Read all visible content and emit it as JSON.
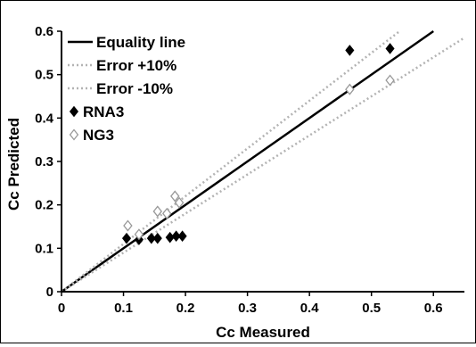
{
  "chart_data": {
    "type": "scatter",
    "xlabel": "Cc Measured",
    "ylabel": "Cc Predicted",
    "xlim": [
      0,
      0.65
    ],
    "ylim": [
      0,
      0.6
    ],
    "x_ticks": [
      0,
      0.1,
      0.2,
      0.3,
      0.4,
      0.5,
      0.6
    ],
    "y_ticks": [
      0,
      0.1,
      0.2,
      0.3,
      0.4,
      0.5,
      0.6
    ],
    "x_tick_labels": [
      "0",
      "0.1",
      "0.2",
      "0.3",
      "0.4",
      "0.5",
      "0.6"
    ],
    "y_tick_labels": [
      "0",
      "0.1",
      "0.2",
      "0.3",
      "0.4",
      "0.5",
      "0.6"
    ],
    "grid": false,
    "legend_position": "top-left",
    "lines": [
      {
        "name": "Equality line",
        "slope": 1.0,
        "color": "#000000",
        "dash": "solid"
      },
      {
        "name": "Error +10%",
        "slope": 1.1,
        "color": "#b3b3b3",
        "dash": "dotted"
      },
      {
        "name": "Error  -10%",
        "slope": 0.9,
        "color": "#b3b3b3",
        "dash": "dotted"
      }
    ],
    "series": [
      {
        "name": "RNA3",
        "marker": "filled-diamond",
        "color": "#000000",
        "points": [
          {
            "x": 0.105,
            "y": 0.123
          },
          {
            "x": 0.125,
            "y": 0.12
          },
          {
            "x": 0.145,
            "y": 0.123
          },
          {
            "x": 0.155,
            "y": 0.123
          },
          {
            "x": 0.175,
            "y": 0.125
          },
          {
            "x": 0.185,
            "y": 0.128
          },
          {
            "x": 0.195,
            "y": 0.128
          },
          {
            "x": 0.465,
            "y": 0.556
          },
          {
            "x": 0.53,
            "y": 0.56
          }
        ]
      },
      {
        "name": "NG3",
        "marker": "open-diamond",
        "color": "#000000",
        "points": [
          {
            "x": 0.107,
            "y": 0.152
          },
          {
            "x": 0.125,
            "y": 0.132
          },
          {
            "x": 0.155,
            "y": 0.185
          },
          {
            "x": 0.17,
            "y": 0.18
          },
          {
            "x": 0.183,
            "y": 0.22
          },
          {
            "x": 0.19,
            "y": 0.205
          },
          {
            "x": 0.465,
            "y": 0.466
          },
          {
            "x": 0.53,
            "y": 0.487
          }
        ]
      }
    ]
  }
}
